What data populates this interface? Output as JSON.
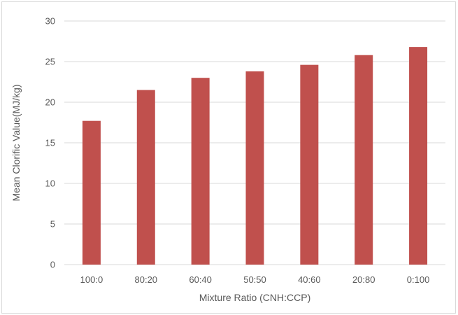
{
  "chart_data": {
    "type": "bar",
    "categories": [
      "100:0",
      "80:20",
      "60:40",
      "50:50",
      "40:60",
      "20:80",
      "0:100"
    ],
    "values": [
      17.7,
      21.5,
      23.0,
      23.8,
      24.6,
      25.8,
      26.8
    ],
    "title": "",
    "xlabel": "Mixture Ratio (CNH:CCP)",
    "ylabel": "Mean Clorific Value(MJ/kg)",
    "ylim": [
      0,
      30
    ],
    "yticks": [
      0,
      5,
      10,
      15,
      20,
      25,
      30
    ],
    "grid": true,
    "legend": "none",
    "bar_color": "#c0504d"
  }
}
